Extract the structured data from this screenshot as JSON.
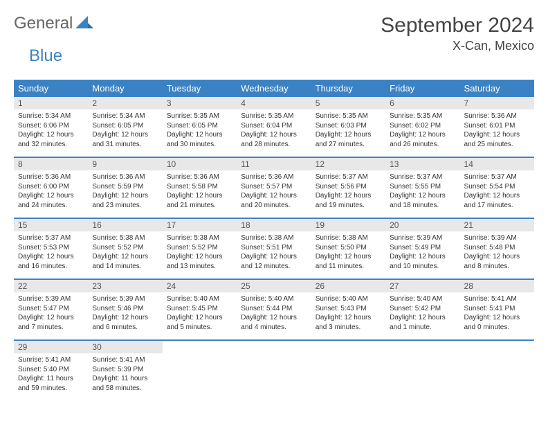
{
  "logo": {
    "part1": "General",
    "part2": "Blue"
  },
  "title": "September 2024",
  "location": "X-Can, Mexico",
  "days_of_week": [
    "Sunday",
    "Monday",
    "Tuesday",
    "Wednesday",
    "Thursday",
    "Friday",
    "Saturday"
  ],
  "colors": {
    "header_bg": "#3b82c4",
    "header_text": "#ffffff",
    "daynum_bg": "#e8e8e8",
    "row_border": "#3b82c4",
    "logo_blue": "#3b82c4"
  },
  "fonts": {
    "title_size_pt": 22,
    "location_size_pt": 14,
    "header_size_pt": 10,
    "cell_size_pt": 7.5
  },
  "weeks": [
    [
      {
        "n": "1",
        "sr": "5:34 AM",
        "ss": "6:06 PM",
        "dl": "12 hours and 32 minutes."
      },
      {
        "n": "2",
        "sr": "5:34 AM",
        "ss": "6:05 PM",
        "dl": "12 hours and 31 minutes."
      },
      {
        "n": "3",
        "sr": "5:35 AM",
        "ss": "6:05 PM",
        "dl": "12 hours and 30 minutes."
      },
      {
        "n": "4",
        "sr": "5:35 AM",
        "ss": "6:04 PM",
        "dl": "12 hours and 28 minutes."
      },
      {
        "n": "5",
        "sr": "5:35 AM",
        "ss": "6:03 PM",
        "dl": "12 hours and 27 minutes."
      },
      {
        "n": "6",
        "sr": "5:35 AM",
        "ss": "6:02 PM",
        "dl": "12 hours and 26 minutes."
      },
      {
        "n": "7",
        "sr": "5:36 AM",
        "ss": "6:01 PM",
        "dl": "12 hours and 25 minutes."
      }
    ],
    [
      {
        "n": "8",
        "sr": "5:36 AM",
        "ss": "6:00 PM",
        "dl": "12 hours and 24 minutes."
      },
      {
        "n": "9",
        "sr": "5:36 AM",
        "ss": "5:59 PM",
        "dl": "12 hours and 23 minutes."
      },
      {
        "n": "10",
        "sr": "5:36 AM",
        "ss": "5:58 PM",
        "dl": "12 hours and 21 minutes."
      },
      {
        "n": "11",
        "sr": "5:36 AM",
        "ss": "5:57 PM",
        "dl": "12 hours and 20 minutes."
      },
      {
        "n": "12",
        "sr": "5:37 AM",
        "ss": "5:56 PM",
        "dl": "12 hours and 19 minutes."
      },
      {
        "n": "13",
        "sr": "5:37 AM",
        "ss": "5:55 PM",
        "dl": "12 hours and 18 minutes."
      },
      {
        "n": "14",
        "sr": "5:37 AM",
        "ss": "5:54 PM",
        "dl": "12 hours and 17 minutes."
      }
    ],
    [
      {
        "n": "15",
        "sr": "5:37 AM",
        "ss": "5:53 PM",
        "dl": "12 hours and 16 minutes."
      },
      {
        "n": "16",
        "sr": "5:38 AM",
        "ss": "5:52 PM",
        "dl": "12 hours and 14 minutes."
      },
      {
        "n": "17",
        "sr": "5:38 AM",
        "ss": "5:52 PM",
        "dl": "12 hours and 13 minutes."
      },
      {
        "n": "18",
        "sr": "5:38 AM",
        "ss": "5:51 PM",
        "dl": "12 hours and 12 minutes."
      },
      {
        "n": "19",
        "sr": "5:38 AM",
        "ss": "5:50 PM",
        "dl": "12 hours and 11 minutes."
      },
      {
        "n": "20",
        "sr": "5:39 AM",
        "ss": "5:49 PM",
        "dl": "12 hours and 10 minutes."
      },
      {
        "n": "21",
        "sr": "5:39 AM",
        "ss": "5:48 PM",
        "dl": "12 hours and 8 minutes."
      }
    ],
    [
      {
        "n": "22",
        "sr": "5:39 AM",
        "ss": "5:47 PM",
        "dl": "12 hours and 7 minutes."
      },
      {
        "n": "23",
        "sr": "5:39 AM",
        "ss": "5:46 PM",
        "dl": "12 hours and 6 minutes."
      },
      {
        "n": "24",
        "sr": "5:40 AM",
        "ss": "5:45 PM",
        "dl": "12 hours and 5 minutes."
      },
      {
        "n": "25",
        "sr": "5:40 AM",
        "ss": "5:44 PM",
        "dl": "12 hours and 4 minutes."
      },
      {
        "n": "26",
        "sr": "5:40 AM",
        "ss": "5:43 PM",
        "dl": "12 hours and 3 minutes."
      },
      {
        "n": "27",
        "sr": "5:40 AM",
        "ss": "5:42 PM",
        "dl": "12 hours and 1 minute."
      },
      {
        "n": "28",
        "sr": "5:41 AM",
        "ss": "5:41 PM",
        "dl": "12 hours and 0 minutes."
      }
    ],
    [
      {
        "n": "29",
        "sr": "5:41 AM",
        "ss": "5:40 PM",
        "dl": "11 hours and 59 minutes."
      },
      {
        "n": "30",
        "sr": "5:41 AM",
        "ss": "5:39 PM",
        "dl": "11 hours and 58 minutes."
      },
      null,
      null,
      null,
      null,
      null
    ]
  ],
  "labels": {
    "sunrise": "Sunrise:",
    "sunset": "Sunset:",
    "daylight": "Daylight:"
  }
}
